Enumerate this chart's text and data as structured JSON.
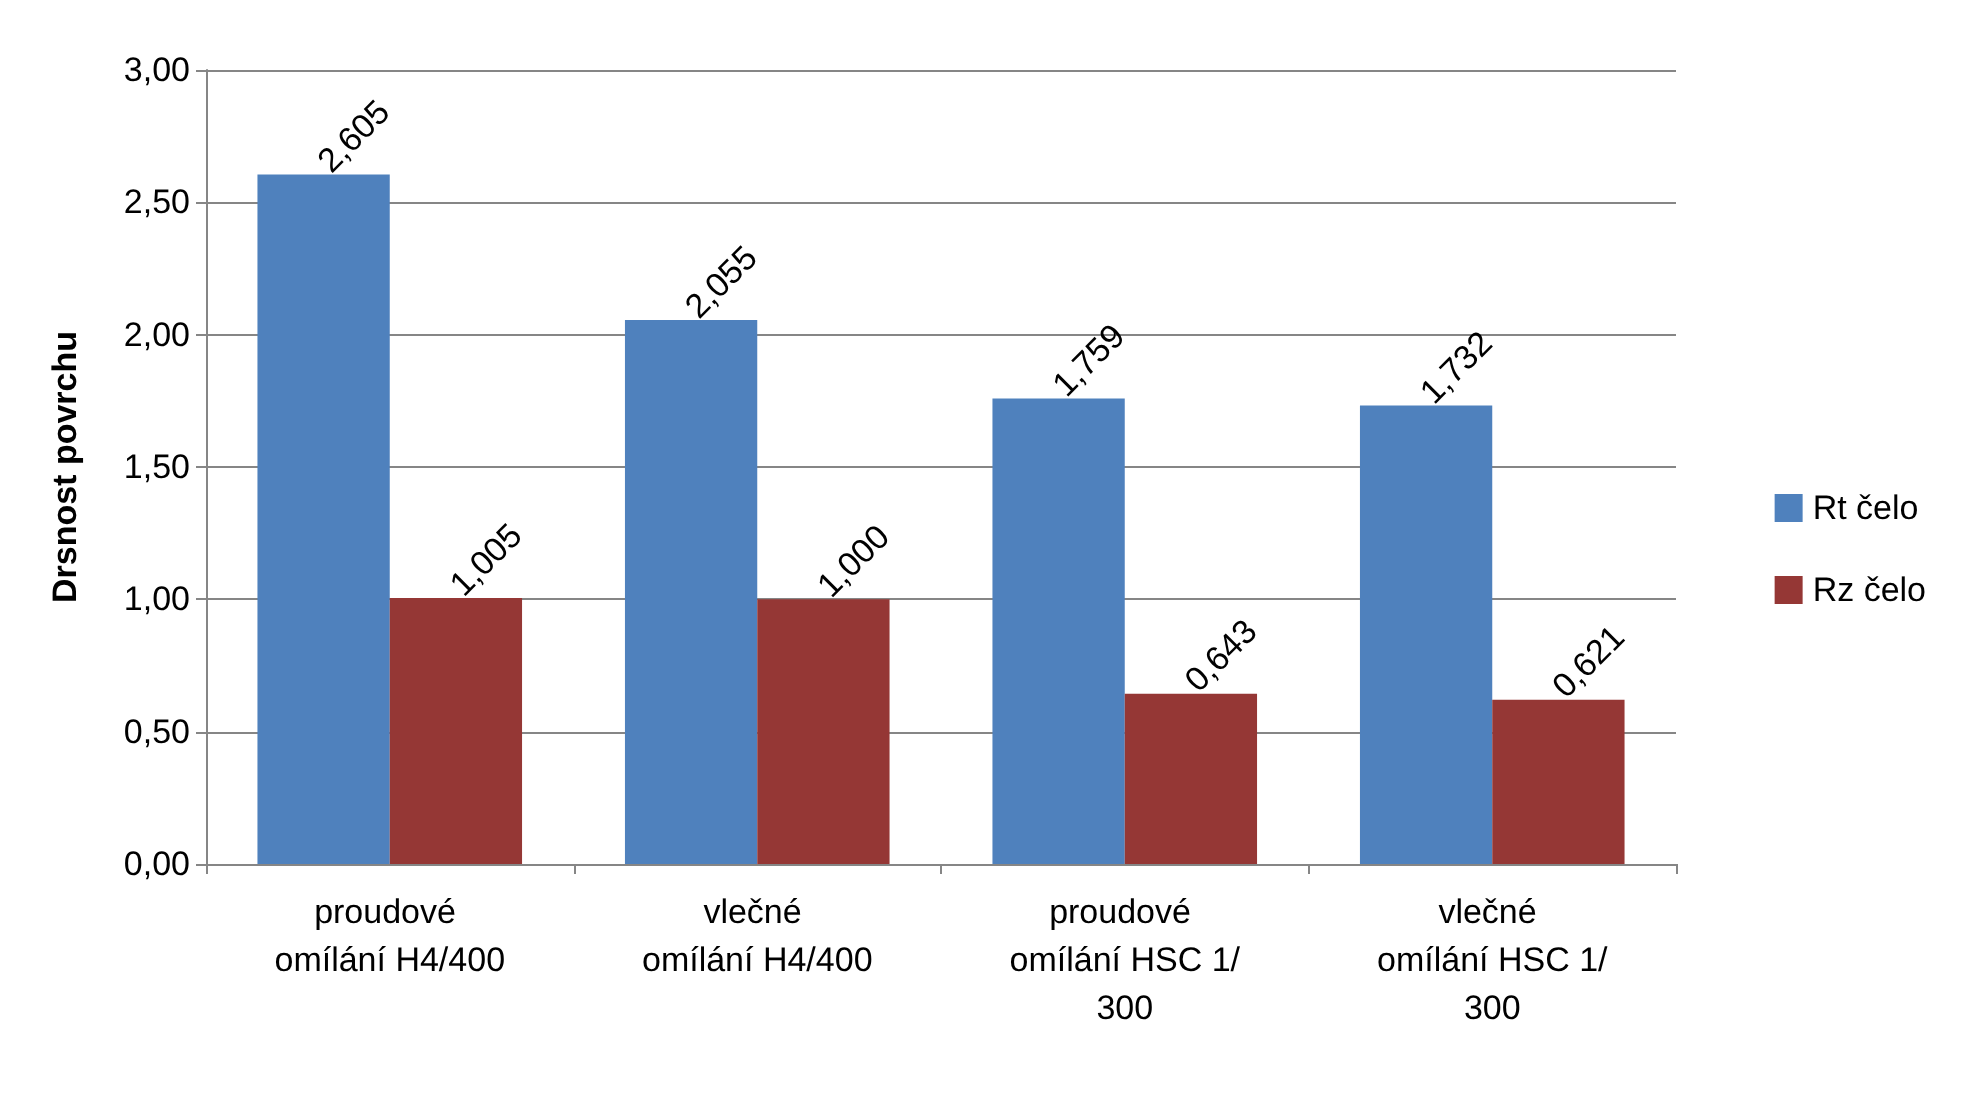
{
  "chart_data": {
    "type": "bar",
    "ylabel": "Drsnost povrchu",
    "categories": [
      "proudové omílání H4/400",
      "vlečné omílání H4/400",
      "proudové omílání HSC 1/300",
      "vlečné omílání HSC 1/300"
    ],
    "series": [
      {
        "name": "Rt čelo",
        "color": "#4f81bd",
        "values": [
          2.605,
          2.055,
          1.759,
          1.732
        ],
        "value_labels": [
          "2,605",
          "2,055",
          "1,759",
          "1,732"
        ]
      },
      {
        "name": "Rz čelo",
        "color": "#953735",
        "values": [
          1.005,
          1.0,
          0.643,
          0.621
        ],
        "value_labels": [
          "1,005",
          "1,000",
          "0,643",
          "0,621"
        ]
      }
    ],
    "ylim": [
      0,
      3
    ],
    "yticks": [
      {
        "value": 0,
        "label": "0,00"
      },
      {
        "value": 0.5,
        "label": "0,50"
      },
      {
        "value": 1,
        "label": "1,00"
      },
      {
        "value": 1.5,
        "label": "1,50"
      },
      {
        "value": 2,
        "label": "2,00"
      },
      {
        "value": 2.5,
        "label": "2,50"
      },
      {
        "value": 3,
        "label": "3,00"
      }
    ],
    "grid": "y",
    "legend": "right"
  }
}
